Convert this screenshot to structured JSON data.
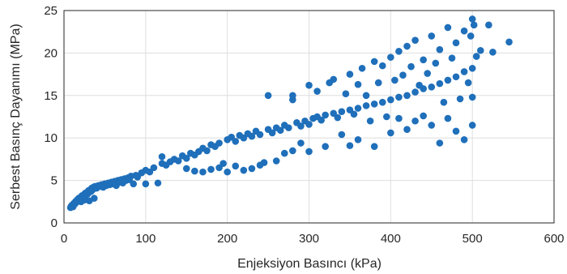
{
  "chart_data": {
    "type": "scatter",
    "title": "",
    "xlabel": "Enjeksiyon Basıncı (kPa)",
    "ylabel": "Serbest Basınç Dayanımı (MPa)",
    "xlim": [
      0,
      600
    ],
    "ylim": [
      0,
      25
    ],
    "xticks": [
      0,
      100,
      200,
      300,
      400,
      500,
      600
    ],
    "yticks": [
      0,
      5,
      10,
      15,
      20,
      25
    ],
    "grid": true,
    "legend": "none",
    "marker_color": "#1f6fba",
    "series": [
      {
        "points": [
          [
            8,
            1.8
          ],
          [
            9,
            2.0
          ],
          [
            10,
            2.1
          ],
          [
            11,
            1.9
          ],
          [
            12,
            2.3
          ],
          [
            13,
            2.2
          ],
          [
            14,
            2.5
          ],
          [
            15,
            2.4
          ],
          [
            16,
            2.7
          ],
          [
            17,
            2.6
          ],
          [
            18,
            2.9
          ],
          [
            19,
            2.8
          ],
          [
            20,
            3.0
          ],
          [
            21,
            2.5
          ],
          [
            22,
            3.2
          ],
          [
            23,
            3.0
          ],
          [
            24,
            3.3
          ],
          [
            25,
            2.7
          ],
          [
            26,
            3.5
          ],
          [
            27,
            3.3
          ],
          [
            28,
            3.6
          ],
          [
            29,
            3.4
          ],
          [
            30,
            3.8
          ],
          [
            31,
            2.6
          ],
          [
            32,
            3.9
          ],
          [
            33,
            3.7
          ],
          [
            34,
            4.1
          ],
          [
            35,
            3.9
          ],
          [
            36,
            4.2
          ],
          [
            37,
            2.9
          ],
          [
            38,
            4.3
          ],
          [
            40,
            4.1
          ],
          [
            42,
            4.4
          ],
          [
            44,
            4.3
          ],
          [
            46,
            4.5
          ],
          [
            48,
            4.2
          ],
          [
            50,
            4.6
          ],
          [
            52,
            4.4
          ],
          [
            54,
            4.7
          ],
          [
            56,
            4.5
          ],
          [
            58,
            4.8
          ],
          [
            60,
            4.6
          ],
          [
            62,
            4.9
          ],
          [
            64,
            4.4
          ],
          [
            66,
            5.0
          ],
          [
            68,
            4.8
          ],
          [
            70,
            5.1
          ],
          [
            72,
            4.7
          ],
          [
            74,
            5.2
          ],
          [
            76,
            5.0
          ],
          [
            78,
            5.3
          ],
          [
            80,
            5.1
          ],
          [
            82,
            5.5
          ],
          [
            85,
            4.6
          ],
          [
            88,
            5.6
          ],
          [
            90,
            5.4
          ],
          [
            95,
            5.9
          ],
          [
            100,
            6.2
          ],
          [
            100,
            4.6
          ],
          [
            105,
            6.0
          ],
          [
            110,
            6.5
          ],
          [
            115,
            4.7
          ],
          [
            120,
            7.0
          ],
          [
            120,
            7.8
          ],
          [
            125,
            6.8
          ],
          [
            130,
            7.2
          ],
          [
            135,
            7.5
          ],
          [
            140,
            7.3
          ],
          [
            145,
            7.9
          ],
          [
            150,
            7.6
          ],
          [
            150,
            6.4
          ],
          [
            155,
            8.2
          ],
          [
            160,
            8.0
          ],
          [
            160,
            6.1
          ],
          [
            165,
            8.4
          ],
          [
            170,
            8.8
          ],
          [
            170,
            6.0
          ],
          [
            175,
            8.5
          ],
          [
            180,
            9.2
          ],
          [
            180,
            6.3
          ],
          [
            185,
            9.0
          ],
          [
            190,
            9.4
          ],
          [
            190,
            6.5
          ],
          [
            195,
            7.0
          ],
          [
            200,
            9.8
          ],
          [
            200,
            6.0
          ],
          [
            205,
            10.1
          ],
          [
            210,
            9.6
          ],
          [
            210,
            6.7
          ],
          [
            215,
            10.3
          ],
          [
            220,
            10.0
          ],
          [
            220,
            6.2
          ],
          [
            225,
            10.5
          ],
          [
            230,
            10.2
          ],
          [
            230,
            6.4
          ],
          [
            235,
            10.8
          ],
          [
            240,
            10.4
          ],
          [
            240,
            6.8
          ],
          [
            245,
            7.1
          ],
          [
            250,
            11.0
          ],
          [
            250,
            15.0
          ],
          [
            255,
            10.6
          ],
          [
            260,
            11.2
          ],
          [
            260,
            7.3
          ],
          [
            265,
            10.9
          ],
          [
            270,
            11.5
          ],
          [
            270,
            8.2
          ],
          [
            275,
            11.2
          ],
          [
            280,
            15.0
          ],
          [
            280,
            14.5
          ],
          [
            280,
            8.5
          ],
          [
            285,
            11.8
          ],
          [
            290,
            11.4
          ],
          [
            290,
            9.4
          ],
          [
            295,
            12.0
          ],
          [
            300,
            11.6
          ],
          [
            300,
            16.2
          ],
          [
            300,
            8.4
          ],
          [
            305,
            12.3
          ],
          [
            310,
            12.5
          ],
          [
            310,
            15.5
          ],
          [
            315,
            12.1
          ],
          [
            320,
            12.7
          ],
          [
            320,
            9.0
          ],
          [
            325,
            16.5
          ],
          [
            330,
            12.9
          ],
          [
            330,
            16.9
          ],
          [
            335,
            12.4
          ],
          [
            340,
            13.1
          ],
          [
            340,
            10.4
          ],
          [
            345,
            15.2
          ],
          [
            350,
            13.3
          ],
          [
            350,
            17.5
          ],
          [
            350,
            9.1
          ],
          [
            355,
            12.8
          ],
          [
            360,
            13.5
          ],
          [
            360,
            16.3
          ],
          [
            360,
            9.8
          ],
          [
            365,
            18.2
          ],
          [
            370,
            13.8
          ],
          [
            370,
            15.0
          ],
          [
            375,
            12.0
          ],
          [
            380,
            14.0
          ],
          [
            380,
            19.0
          ],
          [
            380,
            9.0
          ],
          [
            385,
            16.5
          ],
          [
            390,
            14.2
          ],
          [
            390,
            18.5
          ],
          [
            395,
            12.5
          ],
          [
            400,
            14.5
          ],
          [
            400,
            19.5
          ],
          [
            400,
            10.6
          ],
          [
            405,
            16.8
          ],
          [
            410,
            14.8
          ],
          [
            410,
            20.2
          ],
          [
            410,
            12.3
          ],
          [
            415,
            17.4
          ],
          [
            420,
            15.0
          ],
          [
            420,
            20.8
          ],
          [
            420,
            11.0
          ],
          [
            425,
            18.4
          ],
          [
            430,
            15.4
          ],
          [
            430,
            21.5
          ],
          [
            430,
            12.0
          ],
          [
            435,
            16.2
          ],
          [
            440,
            15.8
          ],
          [
            440,
            19.2
          ],
          [
            440,
            12.6
          ],
          [
            445,
            17.6
          ],
          [
            450,
            16.0
          ],
          [
            450,
            22.0
          ],
          [
            450,
            11.5
          ],
          [
            455,
            18.8
          ],
          [
            460,
            16.4
          ],
          [
            460,
            20.4
          ],
          [
            460,
            9.4
          ],
          [
            465,
            14.2
          ],
          [
            470,
            16.8
          ],
          [
            470,
            23.0
          ],
          [
            470,
            12.3
          ],
          [
            475,
            19.4
          ],
          [
            480,
            17.2
          ],
          [
            480,
            21.2
          ],
          [
            480,
            10.8
          ],
          [
            485,
            14.6
          ],
          [
            490,
            17.8
          ],
          [
            490,
            22.6
          ],
          [
            490,
            9.8
          ],
          [
            495,
            16.5
          ],
          [
            500,
            18.2
          ],
          [
            500,
            24.0
          ],
          [
            500,
            14.8
          ],
          [
            500,
            11.5
          ],
          [
            505,
            19.6
          ],
          [
            510,
            20.3
          ],
          [
            520,
            23.3
          ],
          [
            525,
            20.1
          ],
          [
            545,
            21.3
          ],
          [
            498,
            22.0
          ],
          [
            502,
            23.3
          ]
        ]
      }
    ]
  }
}
